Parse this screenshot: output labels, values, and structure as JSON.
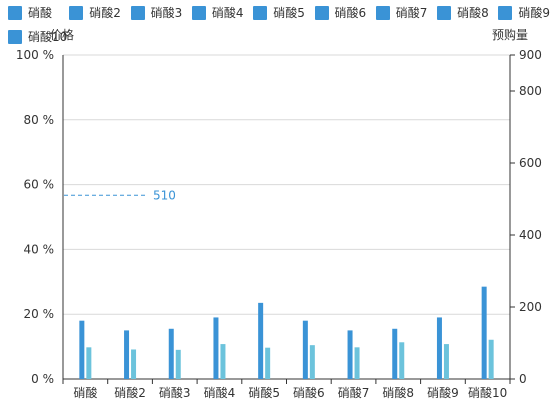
{
  "chart_data": {
    "type": "bar",
    "title": "",
    "legend": {
      "placement": "top-left",
      "entries": [
        "硝酸",
        "硝酸2",
        "硝酸3",
        "硝酸4",
        "硝酸5",
        "硝酸6",
        "硝酸7",
        "硝酸8",
        "硝酸9",
        "硝酸10"
      ]
    },
    "categories": [
      "硝酸",
      "硝酸2",
      "硝酸3",
      "硝酸4",
      "硝酸5",
      "硝酸6",
      "硝酸7",
      "硝酸8",
      "硝酸9",
      "硝酸10"
    ],
    "left_axis": {
      "title": "价格",
      "ylim": [
        0,
        100
      ],
      "ticks": [
        0,
        20,
        40,
        60,
        80,
        100
      ],
      "tick_labels": [
        "0 %",
        "20 %",
        "40 %",
        "60 %",
        "80 %",
        "100 %"
      ]
    },
    "right_axis": {
      "title": "预购量",
      "ylim": [
        0,
        900
      ],
      "ticks": [
        0,
        200,
        400,
        600,
        800,
        900
      ],
      "tick_labels": [
        "0",
        "200",
        "400",
        "600",
        "800",
        "900"
      ]
    },
    "grid": true,
    "series": [
      {
        "axis": "left",
        "color": "#3a93d6",
        "values": [
          18,
          15,
          15.5,
          19,
          23.5,
          18,
          15,
          15.5,
          19,
          28.5
        ]
      },
      {
        "axis": "right",
        "color": "#6cc3dc",
        "values": [
          88,
          82,
          81,
          97,
          87,
          94,
          88,
          102,
          97,
          109
        ]
      }
    ],
    "reference_line": {
      "axis": "left",
      "value": 56.7,
      "label": "510",
      "color": "#3a93d6"
    }
  }
}
